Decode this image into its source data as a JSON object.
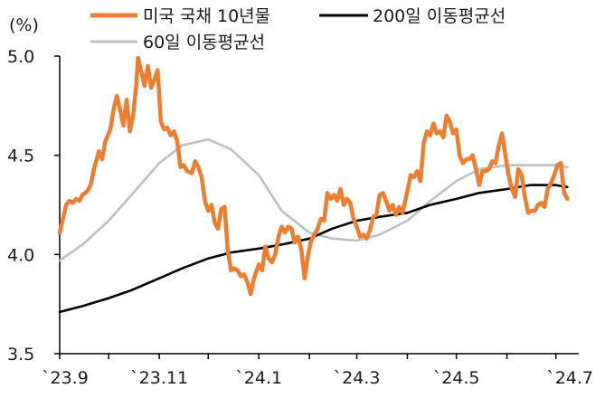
{
  "chart_data": {
    "type": "line",
    "ylabel": "(%)",
    "ylim": [
      3.5,
      5.0
    ],
    "yticks": [
      "3.5",
      "4.0",
      "4.5",
      "5.0"
    ],
    "xticks": [
      "`23.9",
      "`23.11",
      "`24.1",
      "`24.3",
      "`24.5",
      "`24.7"
    ],
    "xlim": [
      "2023-09-01",
      "2024-07-15"
    ],
    "legend_position": "top",
    "grid": false,
    "series": [
      {
        "name": "미국 국채 10년물",
        "color": "#ED7D31",
        "points": [
          [
            "2023-09-01",
            4.11
          ],
          [
            "2023-09-03",
            4.18
          ],
          [
            "2023-09-05",
            4.25
          ],
          [
            "2023-09-07",
            4.27
          ],
          [
            "2023-09-09",
            4.26
          ],
          [
            "2023-09-11",
            4.28
          ],
          [
            "2023-09-13",
            4.27
          ],
          [
            "2023-09-15",
            4.3
          ],
          [
            "2023-09-18",
            4.32
          ],
          [
            "2023-09-20",
            4.35
          ],
          [
            "2023-09-22",
            4.43
          ],
          [
            "2023-09-25",
            4.52
          ],
          [
            "2023-09-27",
            4.48
          ],
          [
            "2023-09-29",
            4.57
          ],
          [
            "2023-10-02",
            4.63
          ],
          [
            "2023-10-04",
            4.73
          ],
          [
            "2023-10-06",
            4.8
          ],
          [
            "2023-10-08",
            4.73
          ],
          [
            "2023-10-10",
            4.65
          ],
          [
            "2023-10-12",
            4.78
          ],
          [
            "2023-10-14",
            4.62
          ],
          [
            "2023-10-16",
            4.7
          ],
          [
            "2023-10-18",
            4.86
          ],
          [
            "2023-10-19",
            4.99
          ],
          [
            "2023-10-21",
            4.92
          ],
          [
            "2023-10-23",
            4.85
          ],
          [
            "2023-10-25",
            4.95
          ],
          [
            "2023-10-27",
            4.84
          ],
          [
            "2023-10-29",
            4.88
          ],
          [
            "2023-10-31",
            4.93
          ],
          [
            "2023-11-02",
            4.67
          ],
          [
            "2023-11-04",
            4.63
          ],
          [
            "2023-11-06",
            4.64
          ],
          [
            "2023-11-08",
            4.6
          ],
          [
            "2023-11-10",
            4.62
          ],
          [
            "2023-11-12",
            4.57
          ],
          [
            "2023-11-14",
            4.44
          ],
          [
            "2023-11-16",
            4.45
          ],
          [
            "2023-11-18",
            4.42
          ],
          [
            "2023-11-21",
            4.41
          ],
          [
            "2023-11-23",
            4.47
          ],
          [
            "2023-11-25",
            4.44
          ],
          [
            "2023-11-27",
            4.39
          ],
          [
            "2023-11-29",
            4.27
          ],
          [
            "2023-12-01",
            4.22
          ],
          [
            "2023-12-03",
            4.25
          ],
          [
            "2023-12-05",
            4.16
          ],
          [
            "2023-12-07",
            4.13
          ],
          [
            "2023-12-09",
            4.23
          ],
          [
            "2023-12-11",
            4.24
          ],
          [
            "2023-12-13",
            4.02
          ],
          [
            "2023-12-15",
            3.92
          ],
          [
            "2023-12-17",
            3.93
          ],
          [
            "2023-12-19",
            3.92
          ],
          [
            "2023-12-21",
            3.89
          ],
          [
            "2023-12-23",
            3.9
          ],
          [
            "2023-12-25",
            3.86
          ],
          [
            "2023-12-27",
            3.8
          ],
          [
            "2023-12-29",
            3.88
          ],
          [
            "2024-01-01",
            3.95
          ],
          [
            "2024-01-03",
            3.92
          ],
          [
            "2024-01-05",
            4.04
          ],
          [
            "2024-01-07",
            3.98
          ],
          [
            "2024-01-09",
            3.96
          ],
          [
            "2024-01-11",
            4.0
          ],
          [
            "2024-01-13",
            4.09
          ],
          [
            "2024-01-15",
            4.14
          ],
          [
            "2024-01-17",
            4.11
          ],
          [
            "2024-01-19",
            4.14
          ],
          [
            "2024-01-21",
            4.13
          ],
          [
            "2024-01-23",
            4.06
          ],
          [
            "2024-01-25",
            4.09
          ],
          [
            "2024-01-27",
            4.03
          ],
          [
            "2024-01-29",
            3.88
          ],
          [
            "2024-01-31",
            3.99
          ],
          [
            "2024-02-02",
            4.07
          ],
          [
            "2024-02-04",
            4.1
          ],
          [
            "2024-02-06",
            4.13
          ],
          [
            "2024-02-08",
            4.18
          ],
          [
            "2024-02-10",
            4.17
          ],
          [
            "2024-02-12",
            4.31
          ],
          [
            "2024-02-14",
            4.28
          ],
          [
            "2024-02-16",
            4.3
          ],
          [
            "2024-02-18",
            4.27
          ],
          [
            "2024-02-20",
            4.33
          ],
          [
            "2024-02-22",
            4.25
          ],
          [
            "2024-02-24",
            4.28
          ],
          [
            "2024-02-26",
            4.26
          ],
          [
            "2024-02-28",
            4.18
          ],
          [
            "2024-03-01",
            4.14
          ],
          [
            "2024-03-03",
            4.09
          ],
          [
            "2024-03-05",
            4.1
          ],
          [
            "2024-03-07",
            4.08
          ],
          [
            "2024-03-09",
            4.12
          ],
          [
            "2024-03-11",
            4.19
          ],
          [
            "2024-03-13",
            4.2
          ],
          [
            "2024-03-15",
            4.3
          ],
          [
            "2024-03-17",
            4.31
          ],
          [
            "2024-03-19",
            4.27
          ],
          [
            "2024-03-21",
            4.22
          ],
          [
            "2024-03-23",
            4.25
          ],
          [
            "2024-03-25",
            4.2
          ],
          [
            "2024-03-27",
            4.24
          ],
          [
            "2024-03-29",
            4.21
          ],
          [
            "2024-04-01",
            4.32
          ],
          [
            "2024-04-03",
            4.4
          ],
          [
            "2024-04-05",
            4.39
          ],
          [
            "2024-04-07",
            4.42
          ],
          [
            "2024-04-09",
            4.37
          ],
          [
            "2024-04-11",
            4.56
          ],
          [
            "2024-04-13",
            4.62
          ],
          [
            "2024-04-15",
            4.6
          ],
          [
            "2024-04-17",
            4.66
          ],
          [
            "2024-04-19",
            4.61
          ],
          [
            "2024-04-21",
            4.62
          ],
          [
            "2024-04-23",
            4.59
          ],
          [
            "2024-04-25",
            4.7
          ],
          [
            "2024-04-27",
            4.67
          ],
          [
            "2024-04-29",
            4.61
          ],
          [
            "2024-05-01",
            4.63
          ],
          [
            "2024-05-03",
            4.5
          ],
          [
            "2024-05-05",
            4.46
          ],
          [
            "2024-05-07",
            4.48
          ],
          [
            "2024-05-09",
            4.48
          ],
          [
            "2024-05-11",
            4.5
          ],
          [
            "2024-05-13",
            4.43
          ],
          [
            "2024-05-15",
            4.35
          ],
          [
            "2024-05-17",
            4.42
          ],
          [
            "2024-05-19",
            4.42
          ],
          [
            "2024-05-21",
            4.43
          ],
          [
            "2024-05-23",
            4.47
          ],
          [
            "2024-05-25",
            4.46
          ],
          [
            "2024-05-27",
            4.55
          ],
          [
            "2024-05-29",
            4.61
          ],
          [
            "2024-05-31",
            4.5
          ],
          [
            "2024-06-02",
            4.4
          ],
          [
            "2024-06-04",
            4.33
          ],
          [
            "2024-06-06",
            4.29
          ],
          [
            "2024-06-08",
            4.43
          ],
          [
            "2024-06-10",
            4.4
          ],
          [
            "2024-06-12",
            4.29
          ],
          [
            "2024-06-14",
            4.21
          ],
          [
            "2024-06-16",
            4.22
          ],
          [
            "2024-06-18",
            4.22
          ],
          [
            "2024-06-20",
            4.25
          ],
          [
            "2024-06-22",
            4.26
          ],
          [
            "2024-06-24",
            4.24
          ],
          [
            "2024-06-26",
            4.33
          ],
          [
            "2024-06-28",
            4.36
          ],
          [
            "2024-06-30",
            4.4
          ],
          [
            "2024-07-02",
            4.45
          ],
          [
            "2024-07-04",
            4.46
          ],
          [
            "2024-07-06",
            4.31
          ],
          [
            "2024-07-08",
            4.28
          ]
        ]
      },
      {
        "name": "200일 이동평균선",
        "color": "#000000",
        "points": [
          [
            "2023-09-01",
            3.71
          ],
          [
            "2023-09-15",
            3.74
          ],
          [
            "2023-10-01",
            3.78
          ],
          [
            "2023-10-15",
            3.82
          ],
          [
            "2023-11-01",
            3.88
          ],
          [
            "2023-11-15",
            3.93
          ],
          [
            "2023-12-01",
            3.98
          ],
          [
            "2023-12-15",
            4.01
          ],
          [
            "2024-01-01",
            4.03
          ],
          [
            "2024-01-15",
            4.05
          ],
          [
            "2024-02-01",
            4.08
          ],
          [
            "2024-02-15",
            4.13
          ],
          [
            "2024-03-01",
            4.17
          ],
          [
            "2024-03-15",
            4.19
          ],
          [
            "2024-04-01",
            4.21
          ],
          [
            "2024-04-15",
            4.25
          ],
          [
            "2024-05-01",
            4.28
          ],
          [
            "2024-05-15",
            4.31
          ],
          [
            "2024-06-01",
            4.33
          ],
          [
            "2024-06-15",
            4.35
          ],
          [
            "2024-07-01",
            4.35
          ],
          [
            "2024-07-08",
            4.34
          ]
        ]
      },
      {
        "name": "60일 이동평균선",
        "color": "#BFBFBF",
        "points": [
          [
            "2023-09-01",
            3.97
          ],
          [
            "2023-09-15",
            4.05
          ],
          [
            "2023-10-01",
            4.17
          ],
          [
            "2023-10-15",
            4.3
          ],
          [
            "2023-11-01",
            4.46
          ],
          [
            "2023-11-15",
            4.55
          ],
          [
            "2023-12-01",
            4.58
          ],
          [
            "2023-12-15",
            4.53
          ],
          [
            "2024-01-01",
            4.4
          ],
          [
            "2024-01-15",
            4.22
          ],
          [
            "2024-02-01",
            4.11
          ],
          [
            "2024-02-15",
            4.08
          ],
          [
            "2024-03-01",
            4.07
          ],
          [
            "2024-03-15",
            4.1
          ],
          [
            "2024-04-01",
            4.17
          ],
          [
            "2024-04-15",
            4.27
          ],
          [
            "2024-05-01",
            4.37
          ],
          [
            "2024-05-15",
            4.43
          ],
          [
            "2024-06-01",
            4.45
          ],
          [
            "2024-06-15",
            4.45
          ],
          [
            "2024-07-01",
            4.45
          ],
          [
            "2024-07-08",
            4.44
          ]
        ]
      }
    ]
  }
}
